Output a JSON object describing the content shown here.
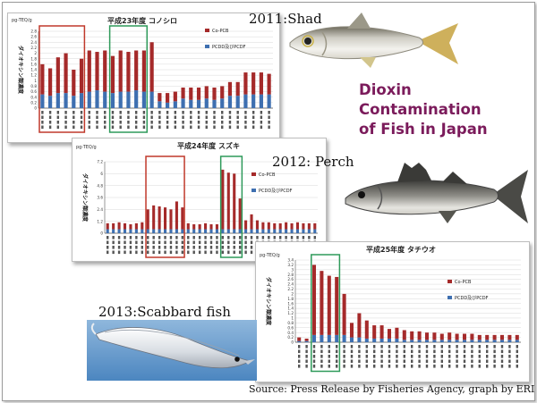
{
  "headline": {
    "line1": "Dioxin",
    "line2": "Contamination",
    "line3": "of  Fish in Japan"
  },
  "source": "Source: Press Release by Fisheries Agency, graph by ERI",
  "captions": {
    "shad": "2011:Shad",
    "perch": "2012: Perch",
    "scabbard": "2013:Scabbard fish"
  },
  "colors": {
    "co_pcb": "#a52a2a",
    "pcdd": "#3e6fb0",
    "red_box": "#c0392b",
    "green_box": "#2e9a5a",
    "headline": "#7b1b5b"
  },
  "chart_data": [
    {
      "type": "bar",
      "stacked": true,
      "title": "平成23年度 コノシロ",
      "unit": "pg-TEQ/g",
      "ylabel": "ダイオキシン類濃度",
      "ylim": [
        0,
        2.8
      ],
      "yticks": [
        0,
        0.2,
        0.4,
        0.6,
        0.8,
        1,
        1.2,
        1.4,
        1.6,
        1.8,
        2,
        2.2,
        2.4,
        2.6,
        2.8
      ],
      "legend": [
        "Co-PCB",
        "PCDD及びPCDF"
      ],
      "series": [
        {
          "name": "PCDD及びPCDF",
          "values": [
            0.5,
            0.45,
            0.55,
            0.55,
            0.45,
            0.55,
            0.6,
            0.65,
            0.6,
            0.55,
            0.6,
            0.6,
            0.65,
            0.6,
            0.6,
            0.25,
            0.2,
            0.25,
            0.35,
            0.3,
            0.3,
            0.35,
            0.3,
            0.35,
            0.45,
            0.45,
            0.5,
            0.5,
            0.5,
            0.5
          ]
        },
        {
          "name": "Co-PCB",
          "values": [
            1.1,
            1.0,
            1.3,
            1.45,
            0.95,
            1.25,
            1.5,
            1.4,
            1.5,
            1.35,
            1.5,
            1.45,
            1.45,
            1.5,
            1.8,
            0.3,
            0.35,
            0.35,
            0.4,
            0.45,
            0.45,
            0.45,
            0.45,
            0.45,
            0.5,
            0.5,
            0.8,
            0.8,
            0.8,
            0.75
          ]
        }
      ]
    },
    {
      "type": "bar",
      "stacked": true,
      "title": "平成24年度 スズキ",
      "unit": "pg-TEQ/g",
      "ylabel": "ダイオキシン類濃度",
      "ylim": [
        0,
        7.2
      ],
      "yticks": [
        0,
        1.2,
        2.4,
        3.6,
        4.8,
        6,
        7.2
      ],
      "legend": [
        "Co-PCB",
        "PCDD及びPCDF"
      ],
      "series": [
        {
          "name": "PCDD及びPCDF",
          "values": [
            0.4,
            0.4,
            0.4,
            0.4,
            0.4,
            0.4,
            0.4,
            0.4,
            0.4,
            0.4,
            0.4,
            0.4,
            0.4,
            0.4,
            0.4,
            0.4,
            0.4,
            0.4,
            0.4,
            0.4,
            0.4,
            0.4,
            0.4,
            0.4,
            0.4,
            0.4,
            0.4,
            0.4,
            0.4,
            0.4,
            0.4,
            0.4,
            0.4,
            0.4,
            0.4,
            0.4,
            0.4
          ]
        },
        {
          "name": "Co-PCB",
          "values": [
            0.6,
            0.6,
            0.7,
            0.6,
            0.5,
            0.6,
            0.7,
            2.0,
            2.4,
            2.3,
            2.2,
            2.0,
            2.8,
            2.2,
            0.6,
            0.5,
            0.5,
            0.6,
            0.5,
            0.5,
            6.0,
            5.7,
            5.6,
            3.1,
            0.9,
            1.5,
            0.9,
            0.7,
            0.7,
            0.6,
            0.6,
            0.7,
            0.6,
            0.7,
            0.6,
            0.6,
            0.6
          ]
        }
      ]
    },
    {
      "type": "bar",
      "stacked": true,
      "title": "平成25年度 タチウオ",
      "unit": "pg-TEQ/g",
      "ylabel": "ダイオキシン類濃度",
      "ylim": [
        0,
        3.4
      ],
      "yticks": [
        0,
        0.2,
        0.4,
        0.6,
        0.8,
        1,
        1.2,
        1.4,
        1.6,
        1.8,
        2,
        2.2,
        2.4,
        2.6,
        2.8,
        3,
        3.2,
        3.4
      ],
      "legend": [
        "Co-PCB",
        "PCDD及びPCDF"
      ],
      "series": [
        {
          "name": "PCDD及びPCDF",
          "values": [
            0.05,
            0.05,
            0.3,
            0.3,
            0.3,
            0.3,
            0.3,
            0.2,
            0.2,
            0.15,
            0.15,
            0.15,
            0.15,
            0.15,
            0.1,
            0.1,
            0.1,
            0.1,
            0.1,
            0.1,
            0.1,
            0.1,
            0.1,
            0.1,
            0.1,
            0.1,
            0.1,
            0.1,
            0.1,
            0.1
          ]
        },
        {
          "name": "Co-PCB",
          "values": [
            0.15,
            0.1,
            2.9,
            2.65,
            2.45,
            2.4,
            1.7,
            0.6,
            1.0,
            0.75,
            0.55,
            0.55,
            0.4,
            0.45,
            0.4,
            0.35,
            0.35,
            0.3,
            0.3,
            0.25,
            0.3,
            0.25,
            0.25,
            0.25,
            0.2,
            0.2,
            0.2,
            0.2,
            0.2,
            0.2
          ]
        }
      ]
    }
  ]
}
